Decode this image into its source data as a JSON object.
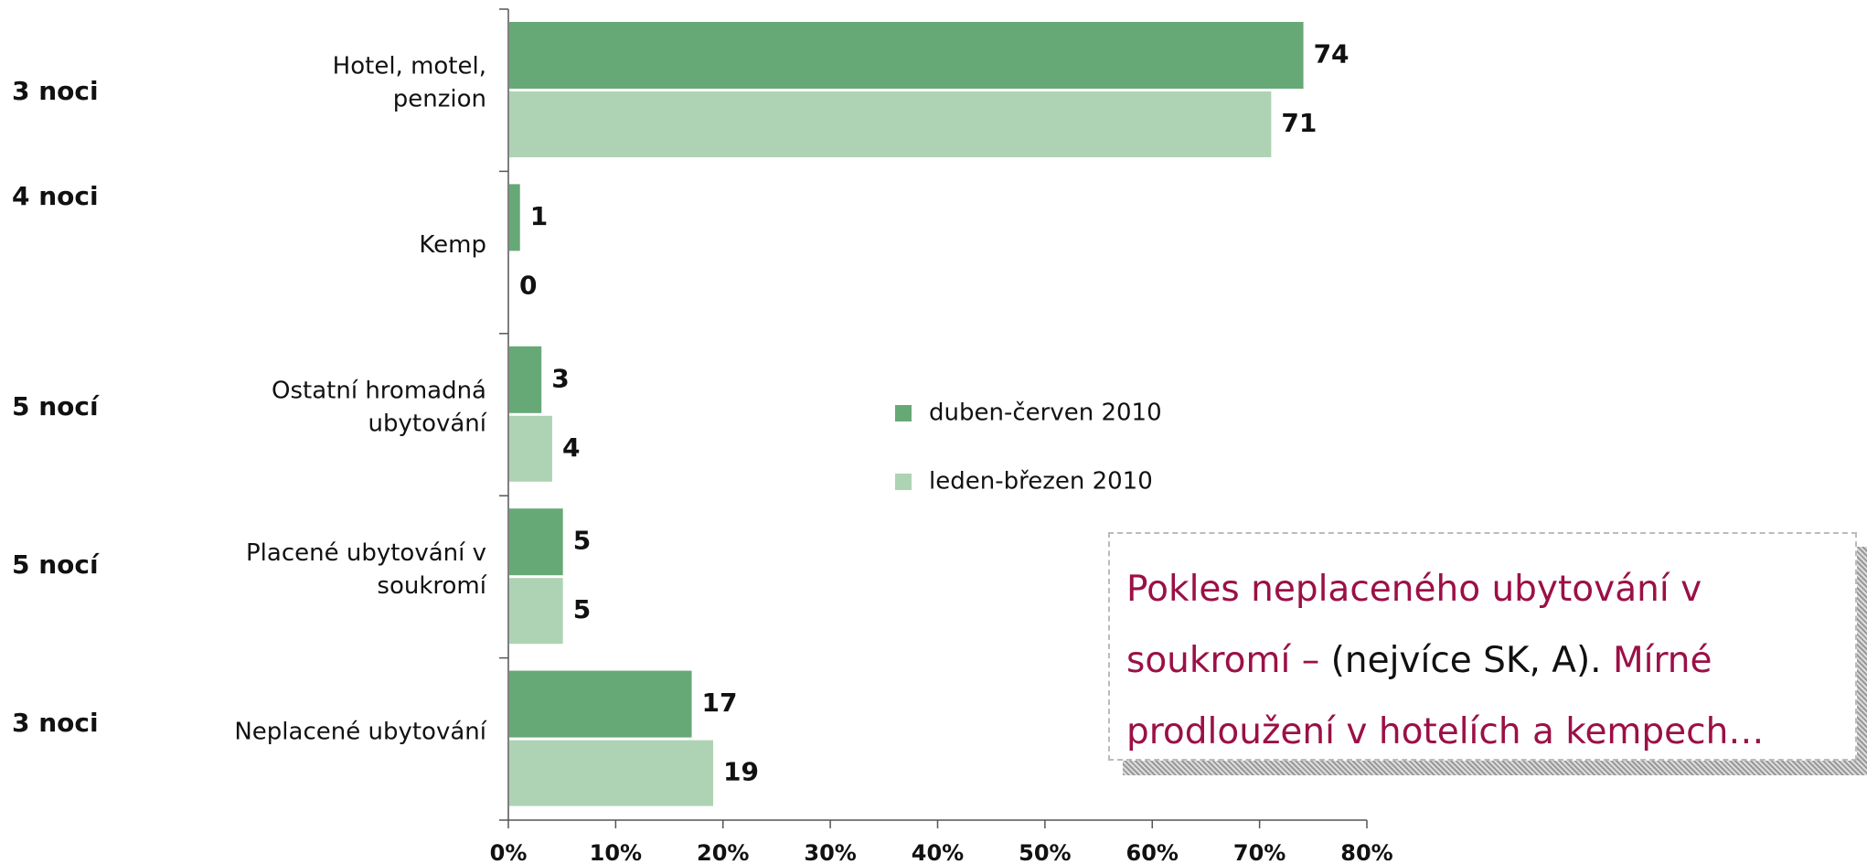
{
  "chart_data": {
    "type": "bar",
    "orientation": "horizontal",
    "categories": [
      "Hotel, motel,\npenzion",
      "Kemp",
      "Ostatní hromadná\nubytování",
      "Placené ubytování v\nsoukromí",
      "Neplacené ubytování"
    ],
    "side_labels": [
      "3 noci",
      "4 noci",
      "5 nocí",
      "5 nocí",
      "3 noci"
    ],
    "series": [
      {
        "name": "duben-červen 2010",
        "color": "#67a877",
        "values": [
          74,
          1,
          3,
          5,
          17
        ]
      },
      {
        "name": "leden-březen 2010",
        "color": "#aed3b4",
        "values": [
          71,
          0,
          4,
          5,
          19
        ]
      }
    ],
    "xlim": [
      0,
      80
    ],
    "xticks": [
      {
        "value": 0,
        "label": "0%"
      },
      {
        "value": 10,
        "label": "10%"
      },
      {
        "value": 20,
        "label": "20%"
      },
      {
        "value": 30,
        "label": "30%"
      },
      {
        "value": 40,
        "label": "40%"
      },
      {
        "value": 50,
        "label": "50%"
      },
      {
        "value": 60,
        "label": "60%"
      },
      {
        "value": 70,
        "label": "70%"
      },
      {
        "value": 80,
        "label": "80%"
      }
    ],
    "annotation": [
      {
        "text": "Pokles neplaceného ubytování v soukromí – ",
        "color": "#9b1046"
      },
      {
        "text": "(nejvíce SK, A).",
        "color": "#111111"
      },
      {
        "text": " Mírné prodloužení v hotelích a kempech…",
        "color": "#9b1046"
      }
    ]
  }
}
